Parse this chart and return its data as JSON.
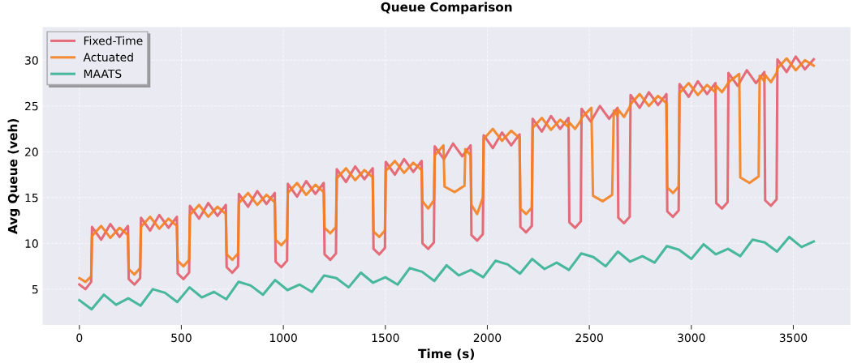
{
  "chart_data": {
    "type": "line",
    "title": "Queue Comparison",
    "xlabel": "Time (s)",
    "ylabel": "Avg Queue (veh)",
    "xlim": [
      -180,
      3780
    ],
    "ylim": [
      1.1,
      33.6
    ],
    "xticks": [
      0,
      500,
      1000,
      1500,
      2000,
      2500,
      3000,
      3500
    ],
    "yticks": [
      5,
      10,
      15,
      20,
      25,
      30
    ],
    "grid": true,
    "legend": "top left",
    "marker": "none",
    "line_style": "solid",
    "series": [
      {
        "name": "Fixed-Time",
        "color": "#e35d6a",
        "x": [
          0,
          30,
          58,
          62,
          107,
          152,
          197,
          238,
          242,
          270,
          298,
          302,
          347,
          392,
          437,
          478,
          482,
          510,
          538,
          542,
          587,
          632,
          677,
          718,
          722,
          750,
          778,
          782,
          827,
          872,
          917,
          958,
          962,
          990,
          1018,
          1022,
          1067,
          1112,
          1157,
          1198,
          1202,
          1230,
          1258,
          1262,
          1307,
          1352,
          1397,
          1438,
          1442,
          1470,
          1498,
          1502,
          1547,
          1592,
          1637,
          1678,
          1682,
          1710,
          1738,
          1742,
          1787,
          1832,
          1877,
          1918,
          1922,
          1950,
          1978,
          1982,
          2027,
          2072,
          2117,
          2158,
          2162,
          2190,
          2218,
          2222,
          2267,
          2312,
          2357,
          2398,
          2402,
          2430,
          2458,
          2462,
          2507,
          2552,
          2597,
          2638,
          2642,
          2670,
          2698,
          2702,
          2747,
          2792,
          2837,
          2878,
          2882,
          2910,
          2938,
          2942,
          2987,
          3032,
          3077,
          3118,
          3122,
          3150,
          3178,
          3182,
          3227,
          3272,
          3317,
          3358,
          3362,
          3390,
          3418,
          3422,
          3467,
          3512,
          3557,
          3600
        ],
        "values": [
          5.5,
          5.0,
          5.8,
          11.8,
          10.4,
          12.1,
          10.7,
          11.9,
          6.1,
          5.5,
          6.2,
          12.8,
          11.4,
          13.1,
          11.7,
          12.9,
          6.7,
          6.1,
          6.8,
          14.1,
          12.7,
          14.4,
          13.0,
          14.2,
          7.4,
          6.8,
          7.5,
          15.4,
          14.0,
          15.7,
          14.3,
          15.5,
          8.0,
          7.4,
          8.1,
          16.5,
          15.1,
          16.8,
          15.4,
          16.6,
          8.8,
          8.2,
          8.9,
          18.1,
          16.7,
          18.4,
          17.0,
          18.2,
          9.4,
          8.8,
          9.5,
          18.9,
          17.5,
          19.2,
          17.8,
          19.0,
          10.0,
          9.4,
          10.1,
          20.6,
          19.2,
          20.9,
          19.5,
          20.7,
          10.9,
          10.3,
          11.0,
          21.8,
          20.4,
          22.1,
          20.7,
          21.9,
          11.8,
          11.2,
          11.9,
          23.6,
          22.2,
          23.9,
          22.5,
          23.7,
          12.3,
          11.7,
          12.4,
          24.7,
          23.3,
          25.0,
          23.6,
          24.8,
          12.8,
          12.2,
          12.9,
          26.2,
          24.8,
          26.5,
          25.1,
          26.3,
          13.5,
          12.9,
          13.6,
          27.4,
          26.0,
          27.7,
          26.3,
          27.5,
          14.4,
          13.8,
          14.5,
          28.6,
          27.2,
          28.9,
          27.5,
          28.7,
          14.7,
          14.1,
          14.8,
          30.1,
          28.7,
          30.4,
          29.0,
          30.1
        ]
      },
      {
        "name": "Actuated",
        "color": "#f4811f",
        "x": [
          0,
          30,
          58,
          62,
          107,
          152,
          197,
          238,
          242,
          270,
          298,
          302,
          347,
          392,
          437,
          478,
          482,
          510,
          538,
          542,
          587,
          632,
          677,
          718,
          722,
          750,
          778,
          782,
          827,
          872,
          917,
          958,
          962,
          990,
          1018,
          1022,
          1067,
          1112,
          1157,
          1198,
          1202,
          1230,
          1258,
          1262,
          1307,
          1352,
          1397,
          1438,
          1442,
          1470,
          1498,
          1502,
          1547,
          1592,
          1637,
          1678,
          1682,
          1710,
          1738,
          1742,
          1785,
          1790,
          1840,
          1888,
          1892,
          1918,
          1922,
          1950,
          1978,
          1982,
          2027,
          2072,
          2117,
          2158,
          2162,
          2190,
          2218,
          2222,
          2267,
          2312,
          2357,
          2398,
          2402,
          2430,
          2458,
          2462,
          2510,
          2518,
          2565,
          2612,
          2620,
          2638,
          2642,
          2670,
          2698,
          2702,
          2747,
          2792,
          2837,
          2878,
          2882,
          2910,
          2938,
          2942,
          2987,
          3032,
          3077,
          3118,
          3122,
          3150,
          3178,
          3182,
          3235,
          3240,
          3285,
          3330,
          3335,
          3358,
          3362,
          3390,
          3418,
          3422,
          3467,
          3512,
          3557,
          3600
        ],
        "values": [
          6.2,
          5.8,
          6.4,
          10.8,
          11.9,
          10.6,
          11.7,
          10.9,
          7.2,
          6.6,
          7.3,
          11.8,
          12.9,
          11.6,
          12.7,
          11.9,
          8.1,
          7.5,
          8.2,
          13.1,
          14.2,
          12.9,
          14.0,
          13.2,
          8.8,
          8.2,
          8.9,
          14.4,
          15.5,
          14.2,
          15.3,
          14.5,
          10.4,
          9.8,
          10.5,
          15.5,
          16.6,
          15.3,
          16.4,
          15.6,
          11.7,
          11.1,
          11.8,
          17.1,
          18.2,
          16.9,
          18.0,
          17.2,
          11.3,
          10.7,
          11.4,
          17.9,
          19.0,
          17.7,
          18.8,
          18.0,
          14.6,
          13.8,
          14.7,
          19.6,
          20.7,
          16.2,
          15.6,
          16.3,
          20.3,
          19.6,
          14.2,
          13.2,
          15.0,
          21.4,
          22.5,
          21.2,
          22.3,
          21.5,
          13.8,
          13.2,
          13.9,
          22.6,
          23.7,
          22.4,
          23.5,
          22.7,
          23.2,
          22.5,
          23.4,
          23.7,
          24.8,
          15.2,
          14.6,
          15.3,
          24.5,
          23.9,
          24.6,
          23.8,
          24.9,
          25.2,
          26.3,
          25.0,
          26.1,
          25.3,
          16.1,
          15.5,
          16.2,
          26.4,
          27.5,
          26.2,
          27.3,
          26.5,
          27.2,
          26.5,
          27.4,
          27.6,
          28.5,
          17.2,
          16.6,
          17.3,
          28.3,
          27.7,
          28.4,
          27.6,
          28.6,
          29.1,
          30.2,
          28.9,
          30.0,
          29.4
        ]
      },
      {
        "name": "MAATS",
        "color": "#36b392",
        "x": [
          0,
          60,
          120,
          180,
          240,
          300,
          360,
          420,
          480,
          540,
          600,
          660,
          720,
          780,
          840,
          900,
          960,
          1020,
          1080,
          1140,
          1200,
          1260,
          1320,
          1380,
          1440,
          1500,
          1560,
          1620,
          1680,
          1740,
          1800,
          1860,
          1920,
          1980,
          2040,
          2100,
          2160,
          2220,
          2280,
          2340,
          2400,
          2460,
          2520,
          2580,
          2640,
          2700,
          2760,
          2820,
          2880,
          2940,
          3000,
          3060,
          3120,
          3180,
          3240,
          3300,
          3360,
          3420,
          3480,
          3540,
          3600
        ],
        "values": [
          3.8,
          2.8,
          4.4,
          3.3,
          4.0,
          3.2,
          5.0,
          4.6,
          3.6,
          5.2,
          4.1,
          4.7,
          3.9,
          5.8,
          5.4,
          4.4,
          6.0,
          4.9,
          5.5,
          4.7,
          6.5,
          6.2,
          5.2,
          6.8,
          5.7,
          6.3,
          5.5,
          7.3,
          6.9,
          5.9,
          7.6,
          6.5,
          7.1,
          6.3,
          8.1,
          7.7,
          6.7,
          8.3,
          7.2,
          7.9,
          7.1,
          8.9,
          8.5,
          7.5,
          9.1,
          8.0,
          8.6,
          7.9,
          9.7,
          9.3,
          8.3,
          9.9,
          8.8,
          9.4,
          8.6,
          10.4,
          10.1,
          9.1,
          10.7,
          9.6,
          10.2
        ]
      }
    ]
  }
}
